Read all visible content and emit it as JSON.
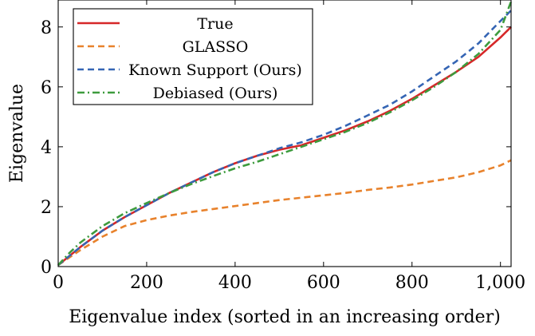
{
  "chart_data": {
    "type": "line",
    "title": "",
    "xlabel": "Eigenvalue index (sorted in an increasing order)",
    "ylabel": "Eigenvalue",
    "xlim": [
      0,
      1024
    ],
    "ylim": [
      0,
      8.9
    ],
    "xticks": [
      0,
      200,
      400,
      600,
      800,
      1000
    ],
    "xtick_labels": [
      "0",
      "200",
      "400",
      "600",
      "800",
      "1,000"
    ],
    "yticks": [
      0,
      2,
      4,
      6,
      8
    ],
    "ytick_labels": [
      "0",
      "2",
      "4",
      "6",
      "8"
    ],
    "grid": false,
    "legend_position": "top-left",
    "series": [
      {
        "name": "True",
        "color": "#d62728",
        "dash": "solid",
        "x": [
          0,
          25,
          50,
          100,
          150,
          200,
          250,
          300,
          350,
          400,
          450,
          500,
          550,
          600,
          650,
          700,
          750,
          800,
          850,
          900,
          950,
          1000,
          1024
        ],
        "y": [
          0.05,
          0.35,
          0.65,
          1.2,
          1.65,
          2.05,
          2.45,
          2.8,
          3.15,
          3.45,
          3.7,
          3.9,
          4.05,
          4.3,
          4.55,
          4.85,
          5.2,
          5.6,
          6.05,
          6.5,
          7.0,
          7.65,
          8.0
        ]
      },
      {
        "name": "GLASSO",
        "color": "#e8822c",
        "dash": "dashed",
        "x": [
          0,
          25,
          50,
          100,
          150,
          200,
          250,
          300,
          350,
          400,
          450,
          500,
          550,
          600,
          650,
          700,
          750,
          800,
          850,
          900,
          950,
          1000,
          1024
        ],
        "y": [
          0.05,
          0.3,
          0.55,
          1.0,
          1.35,
          1.55,
          1.7,
          1.82,
          1.92,
          2.02,
          2.12,
          2.22,
          2.3,
          2.38,
          2.46,
          2.56,
          2.64,
          2.74,
          2.86,
          2.98,
          3.15,
          3.38,
          3.55
        ]
      },
      {
        "name": "Known Support (Ours)",
        "color": "#3565b4",
        "dash": "dashed",
        "x": [
          0,
          25,
          50,
          100,
          150,
          200,
          250,
          300,
          350,
          400,
          450,
          500,
          550,
          600,
          650,
          700,
          750,
          800,
          850,
          900,
          950,
          1000,
          1024
        ],
        "y": [
          0.05,
          0.35,
          0.65,
          1.2,
          1.65,
          2.05,
          2.45,
          2.8,
          3.15,
          3.45,
          3.7,
          3.95,
          4.15,
          4.4,
          4.7,
          5.05,
          5.4,
          5.85,
          6.35,
          6.85,
          7.45,
          8.2,
          8.55
        ]
      },
      {
        "name": "Debiased (Ours)",
        "color": "#3d9b3d",
        "dash": "dashdot",
        "x": [
          0,
          25,
          50,
          100,
          150,
          200,
          250,
          300,
          350,
          400,
          450,
          500,
          550,
          600,
          650,
          700,
          750,
          800,
          850,
          900,
          950,
          1000,
          1024
        ],
        "y": [
          0.05,
          0.45,
          0.8,
          1.35,
          1.78,
          2.12,
          2.45,
          2.75,
          3.02,
          3.28,
          3.5,
          3.75,
          4.0,
          4.25,
          4.5,
          4.8,
          5.15,
          5.55,
          6.0,
          6.5,
          7.1,
          7.9,
          8.85
        ]
      }
    ]
  }
}
